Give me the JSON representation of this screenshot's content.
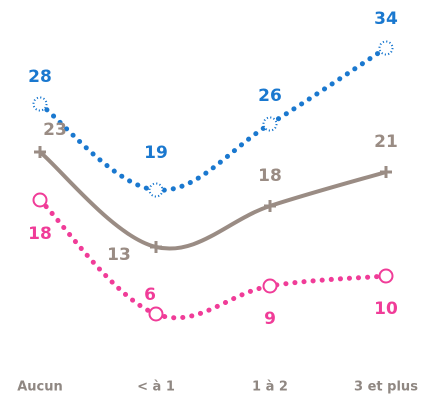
{
  "chart_data": {
    "type": "line",
    "title": "",
    "xlabel": "",
    "ylabel": "",
    "categories": [
      "Aucun",
      "< à 1",
      "1 à 2",
      "3 et plus"
    ],
    "series": [
      {
        "values": [
          28,
          19,
          26,
          34
        ],
        "color": "#1a78cf",
        "line_style": "dotted",
        "marker": "dotted-circle"
      },
      {
        "values": [
          23,
          13,
          18,
          21
        ],
        "color": "#9a8c84",
        "line_style": "solid",
        "marker": "cross"
      },
      {
        "values": [
          18,
          6,
          9,
          10
        ],
        "color": "#f03c98",
        "line_style": "dotted",
        "marker": "circle"
      }
    ],
    "legend": "none",
    "grid": false
  }
}
